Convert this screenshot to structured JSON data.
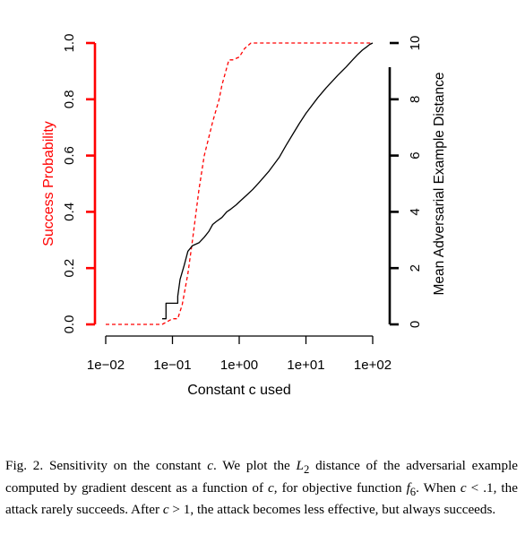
{
  "chart_data": {
    "type": "line",
    "xlabel": "Constant c used",
    "x_scale": "log",
    "xlim": [
      0.01,
      100
    ],
    "x_ticks": [
      0.01,
      0.1,
      1,
      10,
      100
    ],
    "x_tick_labels": [
      "1e−02",
      "1e−01",
      "1e+00",
      "1e+01",
      "1e+02"
    ],
    "y_left": {
      "label": "Success Probability",
      "color": "#ff0000",
      "lim": [
        0,
        1
      ],
      "ticks": [
        0.0,
        0.2,
        0.4,
        0.6,
        0.8,
        1.0
      ],
      "tick_labels": [
        "0.0",
        "0.2",
        "0.4",
        "0.6",
        "0.8",
        "1.0"
      ]
    },
    "y_right": {
      "label": "Mean Adversarial Example Distance",
      "color": "#000000",
      "lim": [
        0,
        10
      ],
      "ticks": [
        0,
        2,
        4,
        6,
        8,
        10
      ],
      "tick_labels": [
        "0",
        "2",
        "4",
        "6",
        "8",
        "10"
      ]
    },
    "grid": false,
    "series": [
      {
        "axis": "left",
        "color": "#ff0000",
        "style": "dashed",
        "x": [
          0.01,
          0.07,
          0.1,
          0.12,
          0.14,
          0.17,
          0.2,
          0.25,
          0.3,
          0.4,
          0.5,
          0.55,
          0.7,
          0.8,
          1.0,
          1.2,
          1.5,
          2.0,
          5.0,
          10,
          50,
          100
        ],
        "y": [
          0.0,
          0.0,
          0.02,
          0.02,
          0.07,
          0.18,
          0.3,
          0.48,
          0.6,
          0.72,
          0.8,
          0.85,
          0.94,
          0.94,
          0.95,
          0.98,
          1.0,
          1.0,
          1.0,
          1.0,
          1.0,
          1.0
        ]
      },
      {
        "axis": "right",
        "color": "#000000",
        "style": "solid",
        "x": [
          0.07,
          0.08,
          0.08,
          0.12,
          0.12,
          0.13,
          0.15,
          0.17,
          0.2,
          0.25,
          0.3,
          0.35,
          0.4,
          0.45,
          0.55,
          0.65,
          0.75,
          0.9,
          1.0,
          1.3,
          1.6,
          2.0,
          2.8,
          4.0,
          5.0,
          6.5,
          8.0,
          10,
          15,
          20,
          30,
          40,
          50,
          60,
          70,
          80,
          90,
          100
        ],
        "y": [
          0.2,
          0.2,
          0.75,
          0.75,
          1.0,
          1.6,
          2.1,
          2.6,
          2.8,
          2.9,
          3.1,
          3.3,
          3.55,
          3.65,
          3.8,
          4.0,
          4.1,
          4.25,
          4.35,
          4.6,
          4.8,
          5.05,
          5.45,
          5.95,
          6.35,
          6.8,
          7.15,
          7.5,
          8.05,
          8.4,
          8.85,
          9.15,
          9.4,
          9.6,
          9.75,
          9.85,
          9.95,
          10.0
        ]
      }
    ]
  },
  "caption": {
    "fig_label": "Fig. 2.",
    "part1": "Sensitivity on the constant",
    "c1": "c",
    "part2": ". We plot the",
    "l2_base": "L",
    "l2_sub": "2",
    "part3": "distance of the adversarial example computed by gradient descent as a function of",
    "c2": "c",
    "part4": ", for objective function",
    "f_base": "f",
    "f_sub": "6",
    "part5": ". When",
    "c3": "c",
    "lt": "<",
    "val1": ".1",
    "part6": ", the attack rarely succeeds. After",
    "c4": "c",
    "gt": ">",
    "val2": "1",
    "part7": ", the attack becomes less effective, but always succeeds."
  }
}
